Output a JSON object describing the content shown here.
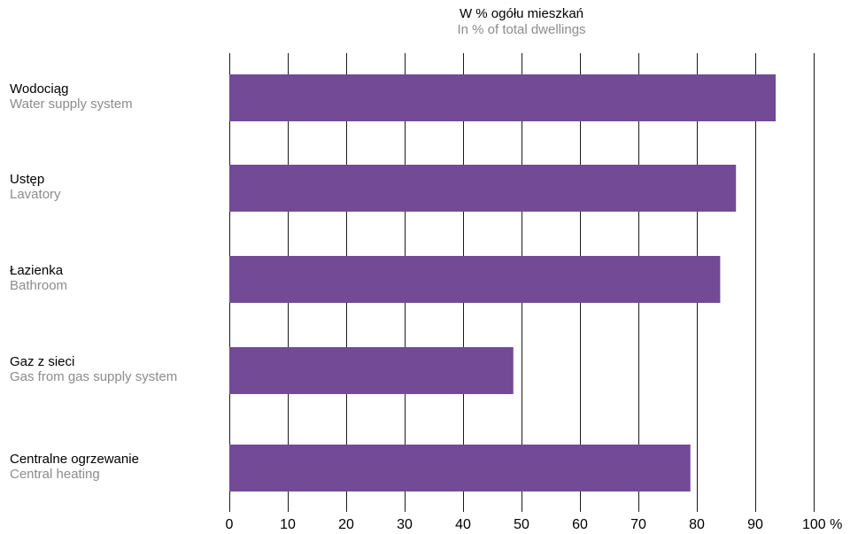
{
  "chart_data": {
    "type": "bar",
    "orientation": "horizontal",
    "title": "W % ogółu mieszkań",
    "subtitle": "In % of total dwellings",
    "categories": [
      {
        "pl": "Wodociąg",
        "en": "Water supply system"
      },
      {
        "pl": "Ustęp",
        "en": "Lavatory"
      },
      {
        "pl": "Łazienka",
        "en": "Bathroom"
      },
      {
        "pl": "Gaz z sieci",
        "en": "Gas from gas supply system"
      },
      {
        "pl": "Centralne ogrzewanie",
        "en": "Central heating"
      }
    ],
    "values": [
      93.5,
      86.7,
      84.0,
      48.6,
      78.9
    ],
    "xlim": [
      0,
      100
    ],
    "ticks": [
      "0",
      "10",
      "20",
      "30",
      "40",
      "50",
      "60",
      "70",
      "80",
      "90",
      "100 %"
    ],
    "grid": true,
    "bar_color": "#734a96"
  }
}
